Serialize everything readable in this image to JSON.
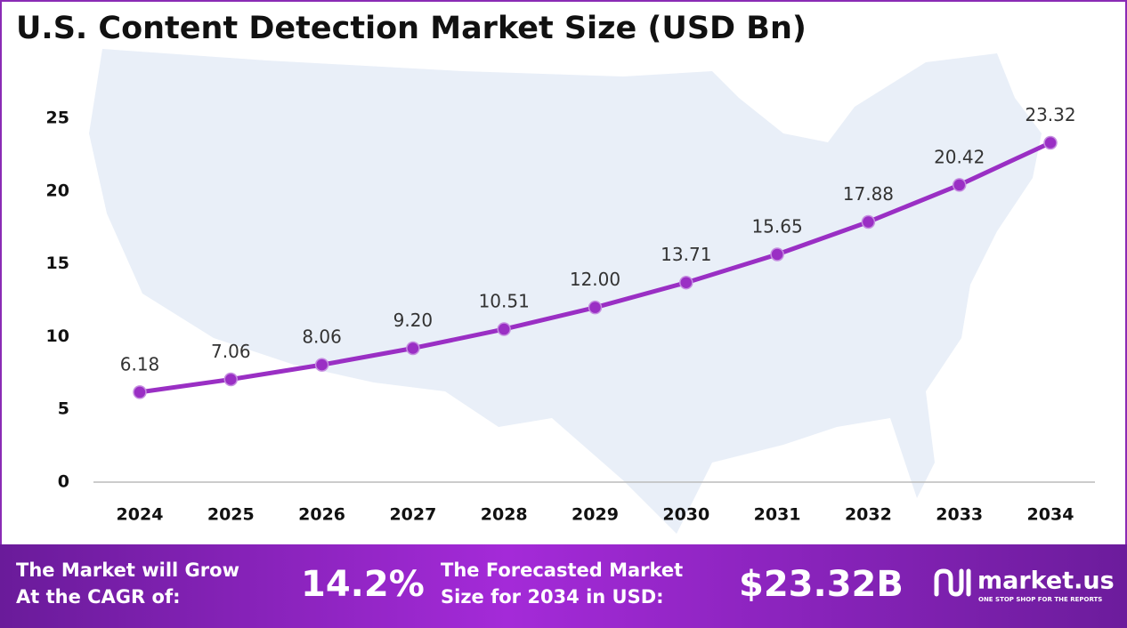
{
  "chart_data": {
    "type": "line",
    "title": "U.S. Content Detection Market Size (USD Bn)",
    "categories": [
      "2024",
      "2025",
      "2026",
      "2027",
      "2028",
      "2029",
      "2030",
      "2031",
      "2032",
      "2033",
      "2034"
    ],
    "values": [
      6.18,
      7.06,
      8.06,
      9.2,
      10.51,
      12,
      13.71,
      15.65,
      17.88,
      20.42,
      23.32
    ],
    "value_labels": [
      "6.18",
      "7.06",
      "8.06",
      "9.20",
      "10.51",
      "12.00",
      "13.71",
      "15.65",
      "17.88",
      "20.42",
      "23.32"
    ],
    "color": "#9a2fc4",
    "ylim": [
      0,
      25
    ],
    "yticks": [
      0,
      5,
      10,
      15,
      20,
      25
    ],
    "grid": false
  },
  "footer": {
    "cagr_label": [
      "The Market will Grow",
      "At the CAGR of:"
    ],
    "cagr_value": "14.2%",
    "forecast_label": [
      "The Forecasted Market",
      "Size for 2034 in USD:"
    ],
    "forecast_value": "$23.32B",
    "brand": "market.us",
    "tagline": "ONE STOP SHOP FOR THE REPORTS"
  }
}
